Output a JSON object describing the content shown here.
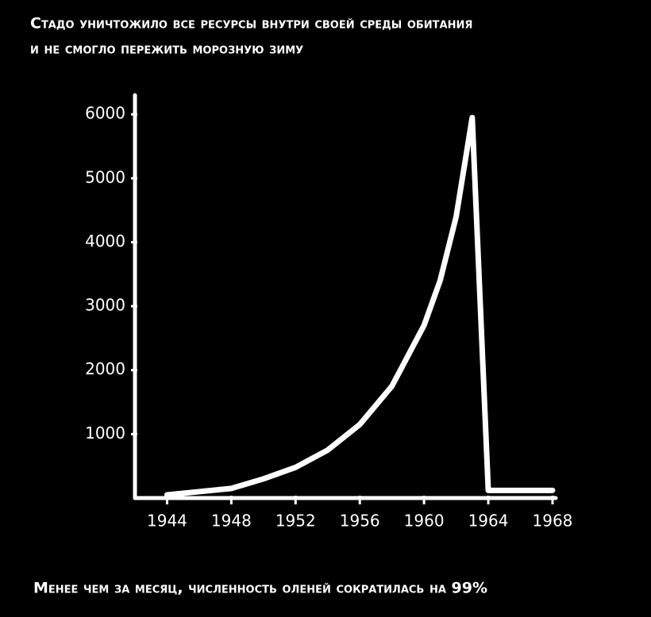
{
  "chart_data": {
    "type": "line",
    "title": "Стадо уничтожило все ресурсы внутри своей среды обитания",
    "subtitle": "и не смогло пережить морозную зиму",
    "annotation": "Менее чем за месяц, численность оленей сократилась на 99%",
    "x": [
      1944,
      1946,
      1948,
      1950,
      1952,
      1954,
      1956,
      1958,
      1960,
      1961,
      1962,
      1963,
      1964,
      1968
    ],
    "series": [
      {
        "color": "#ffffff",
        "values": [
          50,
          100,
          150,
          300,
          480,
          750,
          1150,
          1750,
          2700,
          3400,
          4400,
          5950,
          120,
          120
        ]
      }
    ],
    "xlim": [
      1942,
      1968.2
    ],
    "xticks": [
      1944,
      1948,
      1952,
      1956,
      1960,
      1964,
      1968
    ],
    "ylim": [
      0,
      6300
    ],
    "yticks": [
      1000,
      2000,
      3000,
      4000,
      5000,
      6000
    ]
  }
}
